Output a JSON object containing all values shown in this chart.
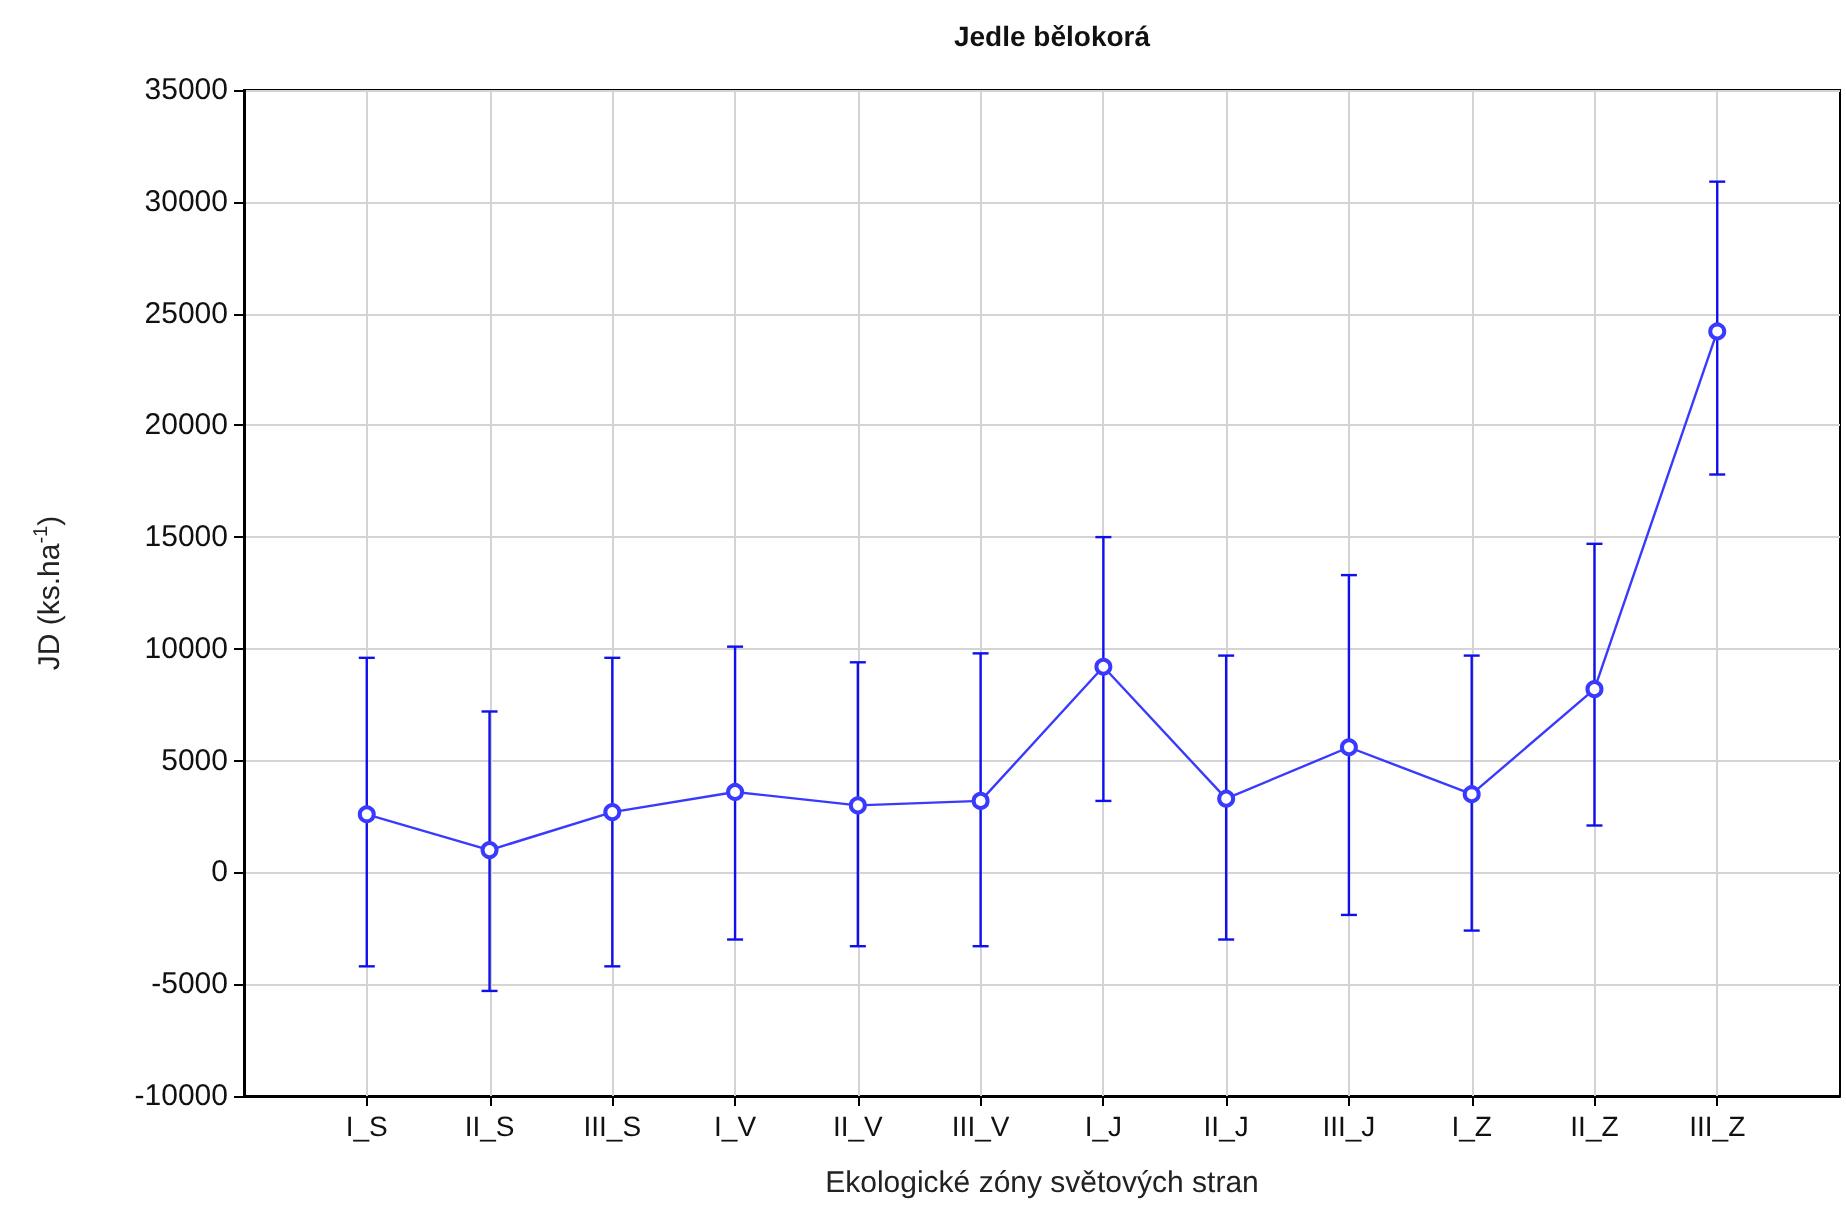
{
  "chart_data": {
    "type": "line",
    "title": "Jedle bělokorá",
    "xlabel": "Ekologické zóny světových stran",
    "ylabel": "JD (ks.ha$^{-1}$)",
    "categories": [
      "I_S",
      "II_S",
      "III_S",
      "I_V",
      "II_V",
      "III_V",
      "I_J",
      "II_J",
      "III_J",
      "I_Z",
      "II_Z",
      "III_Z"
    ],
    "series": [
      {
        "color": "#3a3aff",
        "values": [
          2600,
          1000,
          2700,
          3600,
          3000,
          3200,
          9200,
          3300,
          5600,
          3500,
          8200,
          24200
        ],
        "errors": [
          [
            -4200,
            9600
          ],
          [
            -5300,
            7200
          ],
          [
            -4200,
            9600
          ],
          [
            -3000,
            10100
          ],
          [
            -3300,
            9400
          ],
          [
            -3300,
            9800
          ],
          [
            3200,
            15000
          ],
          [
            -3000,
            9700
          ],
          [
            -1900,
            13300
          ],
          [
            -2600,
            9700
          ],
          [
            2100,
            14700
          ],
          [
            17800,
            30900
          ]
        ]
      }
    ],
    "ylim": [
      -10000,
      35000
    ],
    "yticks": [
      -10000,
      -5000,
      0,
      5000,
      10000,
      15000,
      20000,
      25000,
      30000,
      35000
    ],
    "grid": true,
    "marker": "circle",
    "line_style": "solid"
  }
}
